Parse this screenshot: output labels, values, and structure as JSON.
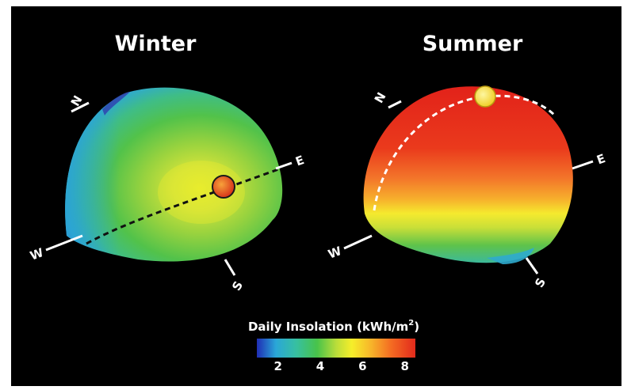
{
  "titles": {
    "winter": "Winter",
    "summer": "Summer"
  },
  "compass": {
    "north": "N",
    "east": "E",
    "south": "S",
    "west": "W"
  },
  "legend": {
    "title_prefix": "Daily Insolation (kWh/m",
    "title_exponent": "2",
    "title_suffix": ")",
    "ticks": [
      "2",
      "4",
      "6",
      "8"
    ],
    "scale_min": 1,
    "scale_max": 8.5,
    "gradient": [
      "#1f2db5",
      "#2aa7d8",
      "#37c0a0",
      "#48c34a",
      "#b9dd3a",
      "#f6ee2a",
      "#f7b52a",
      "#f46a22",
      "#e22a1c"
    ]
  },
  "colors": {
    "background": "#000000",
    "sun_path": "#ffffff",
    "sun_winter": "#e8501e",
    "sun_summer": "#f6e23a"
  }
}
